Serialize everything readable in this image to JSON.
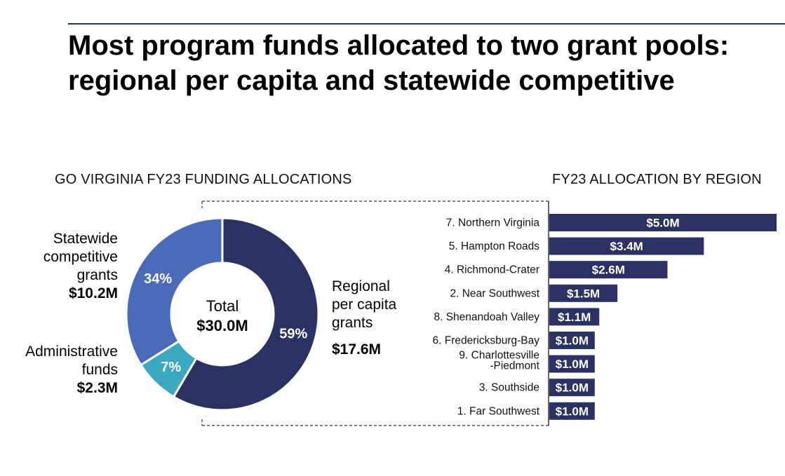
{
  "title_lines": [
    "Most program funds allocated to two grant pools:",
    "regional per capita and statewide competitive"
  ],
  "colors": {
    "navy": "#2b3263",
    "blue": "#4a6cb8",
    "teal": "#3ba7c0",
    "rule": "#2b3263"
  },
  "chart_data": [
    {
      "type": "pie",
      "title": "GO VIRGINIA FY23 FUNDING ALLOCATIONS",
      "center_label": "Total",
      "center_value": "$30.0M",
      "slices": [
        {
          "key": "regional",
          "label_lines": [
            "Regional",
            "per capita",
            "grants"
          ],
          "amount": "$17.6M",
          "value": 17.6,
          "percent": 59,
          "percent_label": "59%",
          "color": "#2b3263"
        },
        {
          "key": "admin",
          "label_lines": [
            "Administrative",
            "funds"
          ],
          "amount": "$2.3M",
          "value": 2.3,
          "percent": 7,
          "percent_label": "7%",
          "color": "#3ba7c0"
        },
        {
          "key": "statewide",
          "label_lines": [
            "Statewide",
            "competitive",
            "grants"
          ],
          "amount": "$10.2M",
          "value": 10.2,
          "percent": 34,
          "percent_label": "34%",
          "color": "#4a6cb8"
        }
      ]
    },
    {
      "type": "bar",
      "orientation": "horizontal",
      "title": "FY23 ALLOCATION BY REGION",
      "categories": [
        [
          "7. Northern Virginia"
        ],
        [
          "5. Hampton Roads"
        ],
        [
          "4. Richmond-Crater"
        ],
        [
          "2. Near Southwest"
        ],
        [
          "8. Shenandoah Valley"
        ],
        [
          "6. Fredericksburg-Bay"
        ],
        [
          "9. Charlottesville",
          "-Piedmont"
        ],
        [
          "3. Southside"
        ],
        [
          "1. Far Southwest"
        ]
      ],
      "values": [
        5.0,
        3.4,
        2.6,
        1.5,
        1.1,
        1.0,
        1.0,
        1.0,
        1.0
      ],
      "value_labels": [
        "$5.0M",
        "$3.4M",
        "$2.6M",
        "$1.5M",
        "$1.1M",
        "$1.0M",
        "$1.0M",
        "$1.0M",
        "$1.0M"
      ],
      "unit": "$M",
      "xlim": [
        0,
        5.0
      ],
      "color": "#2b3263"
    }
  ]
}
